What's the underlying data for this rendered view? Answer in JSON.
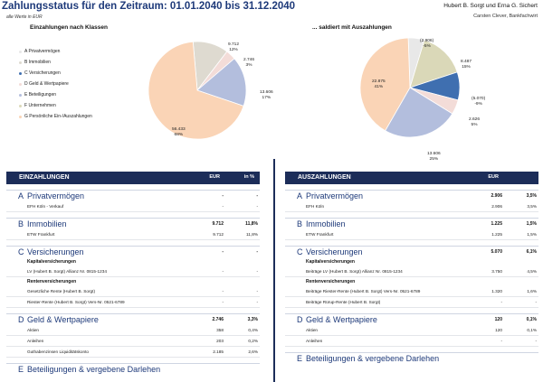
{
  "header": {
    "title": "Zahlungsstatus für den Zeitraum: 01.01.2040 bis 31.12.2040",
    "subtitle": "alle Werte in EUR",
    "client": "Hubert B. Sorgt und Erna G. Sichert",
    "advisor": "Carsten Clever, Bankfachwirt"
  },
  "left_chart_title": "Einzahlungen nach Klassen",
  "right_chart_title": "... saldiert mit Auszahlungen",
  "legend": [
    {
      "label": "A Privatvermögen",
      "color": "#e8e8e8"
    },
    {
      "label": "B Immobilien",
      "color": "#dedad0"
    },
    {
      "label": "C Versicherungen",
      "color": "#3f6fb0"
    },
    {
      "label": "D Geld & Wertpapiere",
      "color": "#f3dcd8"
    },
    {
      "label": "E Beteiligungen",
      "color": "#b3bedd"
    },
    {
      "label": "F Unternehmen",
      "color": "#dad8b8"
    },
    {
      "label": "G Persönliche Ein-/Auszahlungen",
      "color": "#fad4b6"
    }
  ],
  "chart_data": [
    {
      "type": "pie",
      "title": "Einzahlungen nach Klassen",
      "slices": [
        {
          "category": "B Immobilien",
          "value": 9712,
          "label": "9.712",
          "pct": "12%",
          "color": "#dedad0"
        },
        {
          "category": "D Geld & Wertpapiere",
          "value": 2746,
          "label": "2.746",
          "pct": "3%",
          "color": "#f3dcd8"
        },
        {
          "category": "E Beteiligungen",
          "value": 13606,
          "label": "13.606",
          "pct": "17%",
          "color": "#b3bedd"
        },
        {
          "category": "G Persönliche Ein-/Auszahlungen",
          "value": 56433,
          "label": "56.433",
          "pct": "68%",
          "color": "#fad4b6"
        }
      ]
    },
    {
      "type": "pie",
      "title": "... saldiert mit Auszahlungen",
      "slices": [
        {
          "category": "A Privatvermögen",
          "value": -2906,
          "label": "(2.906)",
          "pct": "-5%",
          "color": "#e8e8e8"
        },
        {
          "category": "F Unternehmen",
          "value": 8487,
          "label": "8.487",
          "pct": "15%",
          "color": "#dad8b8"
        },
        {
          "category": "C Versicherungen",
          "value": -5070,
          "label": "(5.070)",
          "pct": "-9%",
          "color": "#3f6fb0"
        },
        {
          "category": "D Geld & Wertpapiere",
          "value": 2626,
          "label": "2.626",
          "pct": "5%",
          "color": "#f3dcd8"
        },
        {
          "category": "E Beteiligungen",
          "value": 13606,
          "label": "13.606",
          "pct": "25%",
          "color": "#b3bedd"
        },
        {
          "category": "G Persönliche Ein-/Auszahlungen",
          "value": 22875,
          "label": "22.875",
          "pct": "41%",
          "color": "#fad4b6"
        }
      ]
    }
  ],
  "tables": {
    "in": {
      "title": "EINZAHLUNGEN",
      "col1": "EUR",
      "col2": "in %",
      "categories": [
        {
          "letter": "A",
          "name": "Privatvermögen",
          "v1": "-",
          "v2": "-",
          "rows": [
            {
              "kind": "row",
              "label": "EFH Köln - Verkauf",
              "v1": "-",
              "v2": "-"
            }
          ]
        },
        {
          "letter": "B",
          "name": "Immobilien",
          "v1": "9.712",
          "v2": "11,8%",
          "rows": [
            {
              "kind": "row",
              "label": "ETW Frankfurt",
              "v1": "9.712",
              "v2": "11,8%"
            }
          ]
        },
        {
          "letter": "C",
          "name": "Versicherungen",
          "v1": "-",
          "v2": "-",
          "rows": [
            {
              "kind": "sub",
              "label": "Kapitalversicherungen"
            },
            {
              "kind": "row",
              "label": "LV (Hubert B. Sorgt) Allianz Nr. 0815-1234",
              "v1": "-",
              "v2": "-"
            },
            {
              "kind": "sub",
              "label": "Rentenversicherungen"
            },
            {
              "kind": "row",
              "label": "Gesetzliche Rente (Hubert B. Sorgt)",
              "v1": "-",
              "v2": "-"
            },
            {
              "kind": "row",
              "label": "Riester-Rente (Hubert B. Sorgt) Vers-Nr. 0521-6789",
              "v1": "-",
              "v2": "-"
            }
          ]
        },
        {
          "letter": "D",
          "name": "Geld & Wertpapiere",
          "v1": "2.746",
          "v2": "3,3%",
          "rows": [
            {
              "kind": "row",
              "label": "Aktien",
              "v1": "358",
              "v2": "0,4%"
            },
            {
              "kind": "row",
              "label": "Anleihen",
              "v1": "203",
              "v2": "0,2%"
            },
            {
              "kind": "row",
              "label": "Guthabenzinsen Liquiditätskonto",
              "v1": "2.185",
              "v2": "2,6%"
            }
          ]
        },
        {
          "letter": "E",
          "name": "Beteiligungen & vergebene Darlehen",
          "v1": "",
          "v2": "",
          "rows": []
        }
      ]
    },
    "out": {
      "title": "AUSZAHLUNGEN",
      "col1": "EUR",
      "col2": "",
      "categories": [
        {
          "letter": "A",
          "name": "Privatvermögen",
          "v1": "2.906",
          "v2": "3,5%",
          "rows": [
            {
              "kind": "row",
              "label": "EFH Köln",
              "v1": "2.906",
              "v2": "3,5%"
            }
          ]
        },
        {
          "letter": "B",
          "name": "Immobilien",
          "v1": "1.225",
          "v2": "1,5%",
          "rows": [
            {
              "kind": "row",
              "label": "ETW Frankfurt",
              "v1": "1.225",
              "v2": "1,5%"
            }
          ]
        },
        {
          "letter": "C",
          "name": "Versicherungen",
          "v1": "5.070",
          "v2": "6,1%",
          "rows": [
            {
              "kind": "sub",
              "label": "Kapitalversicherungen"
            },
            {
              "kind": "row",
              "label": "Beiträge LV (Hubert B. Sorgt) Allianz Nr. 0815-1234",
              "v1": "3.750",
              "v2": "4,5%"
            },
            {
              "kind": "sub",
              "label": "Rentenversicherungen"
            },
            {
              "kind": "row",
              "label": "Beiträge Riester-Rente (Hubert B. Sorgt) Vers-Nr. 0521-6789",
              "v1": "1.320",
              "v2": "1,6%"
            },
            {
              "kind": "row",
              "label": "Beiträge Rürup-Rente (Hubert B. Sorgt)",
              "v1": "-",
              "v2": "-"
            }
          ]
        },
        {
          "letter": "D",
          "name": "Geld & Wertpapiere",
          "v1": "120",
          "v2": "0,1%",
          "rows": [
            {
              "kind": "row",
              "label": "Aktien",
              "v1": "120",
              "v2": "0,1%"
            },
            {
              "kind": "row",
              "label": "Anleihen",
              "v1": "-",
              "v2": "-"
            }
          ]
        },
        {
          "letter": "E",
          "name": "Beteiligungen & vergebene Darlehen",
          "v1": "",
          "v2": "",
          "rows": []
        }
      ]
    }
  }
}
